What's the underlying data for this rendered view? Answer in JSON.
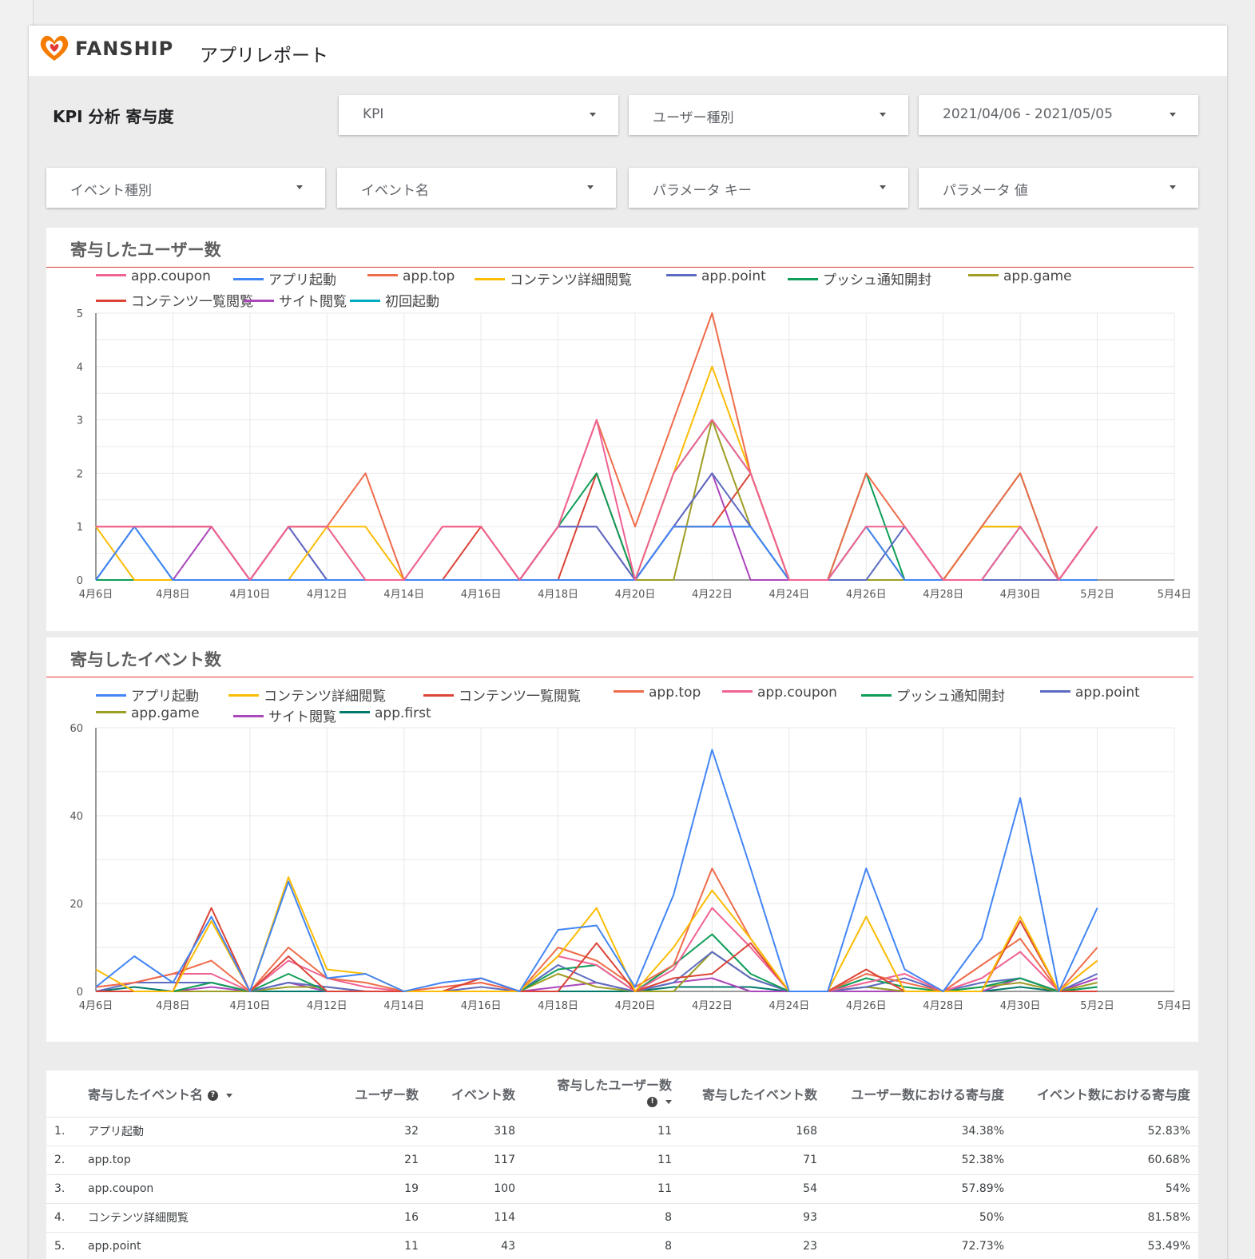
{
  "header": {
    "brand": "FANSHIP",
    "title": "アプリレポート"
  },
  "page_title": "KPI 分析 寄与度",
  "filters": [
    {
      "label": "KPI"
    },
    {
      "label": "ユーザー種別"
    },
    {
      "label": "2021/04/06 - 2021/05/05"
    },
    {
      "label": "イベント種別"
    },
    {
      "label": "イベント名"
    },
    {
      "label": "パラメータ キー"
    },
    {
      "label": "パラメータ 値"
    }
  ],
  "colors": {
    "accent_rule": "#e53935",
    "logo_orange": "#f57c00",
    "logo_red": "#e53935"
  },
  "chart_data": [
    {
      "type": "line",
      "title": "寄与したユーザー数",
      "x": [
        "4月6日",
        "4月7日",
        "4月8日",
        "4月9日",
        "4月10日",
        "4月11日",
        "4月12日",
        "4月13日",
        "4月14日",
        "4月15日",
        "4月16日",
        "4月17日",
        "4月18日",
        "4月19日",
        "4月20日",
        "4月21日",
        "4月22日",
        "4月23日",
        "4月24日",
        "4月25日",
        "4月26日",
        "4月27日",
        "4月28日",
        "4月29日",
        "4月30日",
        "5月1日",
        "5月2日"
      ],
      "x_ticks": [
        "4月6日",
        "4月8日",
        "4月10日",
        "4月12日",
        "4月14日",
        "4月16日",
        "4月18日",
        "4月20日",
        "4月22日",
        "4月24日",
        "4月26日",
        "4月28日",
        "4月30日",
        "5月2日",
        "5月4日"
      ],
      "ylim": [
        0,
        5
      ],
      "y_ticks": [
        0,
        1,
        2,
        3,
        4,
        5
      ],
      "grid": true,
      "legend_position": "top",
      "series": [
        {
          "name": "app.coupon",
          "color": "#f06292",
          "values": [
            1,
            1,
            1,
            1,
            0,
            1,
            1,
            0,
            0,
            1,
            1,
            0,
            1,
            3,
            0,
            2,
            3,
            2,
            0,
            0,
            1,
            1,
            0,
            0,
            1,
            0,
            1
          ]
        },
        {
          "name": "アプリ起動",
          "color": "#4285f4",
          "values": [
            0,
            1,
            0,
            0,
            0,
            0,
            0,
            0,
            0,
            0,
            0,
            0,
            0,
            0,
            0,
            1,
            1,
            1,
            0,
            0,
            1,
            0,
            0,
            0,
            1,
            0,
            0
          ]
        },
        {
          "name": "app.top",
          "color": "#ef6c4a",
          "values": [
            1,
            1,
            1,
            1,
            0,
            1,
            1,
            2,
            0,
            1,
            1,
            0,
            1,
            3,
            1,
            3,
            5,
            2,
            0,
            0,
            2,
            1,
            0,
            1,
            2,
            0,
            1
          ]
        },
        {
          "name": "コンテンツ詳細閲覧",
          "color": "#fbbc04",
          "values": [
            1,
            0,
            0,
            0,
            0,
            0,
            1,
            1,
            0,
            0,
            0,
            0,
            0,
            0,
            0,
            2,
            4,
            2,
            0,
            0,
            1,
            0,
            0,
            1,
            1,
            0,
            0
          ]
        },
        {
          "name": "app.point",
          "color": "#5c6bc0",
          "values": [
            0,
            1,
            1,
            1,
            0,
            1,
            0,
            0,
            0,
            0,
            0,
            0,
            1,
            1,
            0,
            1,
            2,
            1,
            0,
            0,
            0,
            1,
            0,
            0,
            0,
            0,
            1
          ]
        },
        {
          "name": "プッシュ通知開封",
          "color": "#0f9d58",
          "values": [
            0,
            0,
            0,
            0,
            0,
            0,
            0,
            0,
            0,
            0,
            0,
            0,
            1,
            2,
            0,
            2,
            3,
            2,
            0,
            0,
            2,
            0,
            0,
            1,
            2,
            0,
            0
          ]
        },
        {
          "name": "app.game",
          "color": "#9e9d24",
          "values": [
            0,
            0,
            0,
            0,
            0,
            1,
            1,
            0,
            0,
            0,
            0,
            0,
            0,
            0,
            0,
            0,
            3,
            1,
            0,
            0,
            0,
            0,
            0,
            1,
            1,
            0,
            0
          ]
        },
        {
          "name": "コンテンツ一覧閲覧",
          "color": "#db4437",
          "values": [
            0,
            0,
            0,
            0,
            0,
            0,
            0,
            0,
            0,
            0,
            1,
            0,
            0,
            2,
            0,
            1,
            1,
            2,
            0,
            0,
            0,
            0,
            0,
            0,
            0,
            0,
            0
          ]
        },
        {
          "name": "サイト閲覧",
          "color": "#ab47bc",
          "values": [
            0,
            0,
            0,
            1,
            0,
            1,
            0,
            0,
            0,
            0,
            0,
            0,
            1,
            1,
            0,
            1,
            2,
            0,
            0,
            0,
            0,
            0,
            0,
            0,
            0,
            0,
            1
          ]
        },
        {
          "name": "初回起動",
          "color": "#00acc1",
          "values": [
            0,
            1,
            0,
            0,
            0,
            0,
            0,
            0,
            0,
            0,
            0,
            0,
            0,
            0,
            0,
            1,
            1,
            1,
            0,
            0,
            1,
            0,
            0,
            0,
            1,
            0,
            0
          ]
        }
      ]
    },
    {
      "type": "line",
      "title": "寄与したイベント数",
      "x": [
        "4月6日",
        "4月7日",
        "4月8日",
        "4月9日",
        "4月10日",
        "4月11日",
        "4月12日",
        "4月13日",
        "4月14日",
        "4月15日",
        "4月16日",
        "4月17日",
        "4月18日",
        "4月19日",
        "4月20日",
        "4月21日",
        "4月22日",
        "4月23日",
        "4月24日",
        "4月25日",
        "4月26日",
        "4月27日",
        "4月28日",
        "4月29日",
        "4月30日",
        "5月1日",
        "5月2日"
      ],
      "x_ticks": [
        "4月6日",
        "4月8日",
        "4月10日",
        "4月12日",
        "4月14日",
        "4月16日",
        "4月18日",
        "4月20日",
        "4月22日",
        "4月24日",
        "4月26日",
        "4月28日",
        "4月30日",
        "5月2日",
        "5月4日"
      ],
      "ylim": [
        0,
        60
      ],
      "y_ticks": [
        0,
        20,
        40,
        60
      ],
      "grid": true,
      "legend_position": "top",
      "series": [
        {
          "name": "アプリ起動",
          "color": "#4285f4",
          "values": [
            1,
            8,
            2,
            17,
            0,
            25,
            3,
            4,
            0,
            2,
            3,
            0,
            14,
            15,
            1,
            22,
            55,
            28,
            0,
            0,
            28,
            5,
            0,
            12,
            44,
            0,
            19
          ]
        },
        {
          "name": "コンテンツ詳細閲覧",
          "color": "#fbbc04",
          "values": [
            5,
            0,
            0,
            16,
            0,
            26,
            5,
            4,
            0,
            0,
            0,
            0,
            8,
            19,
            0,
            10,
            23,
            12,
            0,
            0,
            17,
            0,
            0,
            0,
            17,
            0,
            7
          ]
        },
        {
          "name": "コンテンツ一覧閲覧",
          "color": "#db4437",
          "values": [
            0,
            0,
            0,
            19,
            0,
            8,
            0,
            0,
            0,
            0,
            3,
            0,
            0,
            11,
            0,
            3,
            4,
            11,
            0,
            0,
            5,
            0,
            0,
            0,
            16,
            0,
            0
          ]
        },
        {
          "name": "app.top",
          "color": "#ef6c4a",
          "values": [
            1,
            2,
            4,
            7,
            0,
            10,
            3,
            2,
            0,
            1,
            2,
            0,
            10,
            7,
            1,
            6,
            28,
            12,
            0,
            0,
            4,
            2,
            0,
            6,
            12,
            0,
            10
          ]
        },
        {
          "name": "app.coupon",
          "color": "#f06292",
          "values": [
            1,
            2,
            4,
            4,
            0,
            7,
            3,
            1,
            0,
            1,
            2,
            0,
            8,
            6,
            0,
            5,
            19,
            10,
            0,
            0,
            2,
            4,
            0,
            3,
            9,
            0,
            7
          ]
        },
        {
          "name": "プッシュ通知開封",
          "color": "#0f9d58",
          "values": [
            0,
            0,
            0,
            2,
            0,
            4,
            0,
            0,
            0,
            0,
            0,
            0,
            5,
            6,
            0,
            6,
            13,
            4,
            0,
            0,
            3,
            1,
            0,
            1,
            3,
            0,
            1
          ]
        },
        {
          "name": "app.point",
          "color": "#5c6bc0",
          "values": [
            0,
            2,
            2,
            2,
            0,
            2,
            1,
            0,
            0,
            0,
            1,
            0,
            6,
            2,
            0,
            2,
            9,
            3,
            0,
            0,
            1,
            3,
            0,
            2,
            3,
            0,
            4
          ]
        },
        {
          "name": "app.game",
          "color": "#9e9d24",
          "values": [
            0,
            0,
            0,
            0,
            0,
            1,
            1,
            0,
            0,
            0,
            0,
            0,
            4,
            1,
            0,
            0,
            9,
            3,
            0,
            0,
            1,
            0,
            0,
            1,
            2,
            0,
            2
          ]
        },
        {
          "name": "サイト閲覧",
          "color": "#ab47bc",
          "values": [
            0,
            0,
            0,
            1,
            0,
            2,
            0,
            0,
            0,
            0,
            0,
            0,
            1,
            2,
            0,
            2,
            3,
            0,
            0,
            0,
            0,
            0,
            0,
            0,
            3,
            0,
            3
          ]
        },
        {
          "name": "app.first",
          "color": "#00796b",
          "values": [
            0,
            1,
            0,
            0,
            0,
            0,
            0,
            0,
            0,
            0,
            0,
            0,
            0,
            0,
            0,
            1,
            1,
            1,
            0,
            0,
            1,
            0,
            0,
            0,
            1,
            0,
            1
          ]
        }
      ]
    }
  ],
  "table": {
    "columns": {
      "event_name": "寄与したイベント名",
      "users": "ユーザー数",
      "events": "イベント数",
      "contrib_users": "寄与したユーザー数",
      "contrib_events": "寄与したイベント数",
      "user_ratio": "ユーザー数における寄与度",
      "event_ratio": "イベント数における寄与度"
    },
    "rows": [
      {
        "idx": "1.",
        "name": "アプリ起動",
        "users": "32",
        "events": "318",
        "cu": "11",
        "ce": "168",
        "ur": "34.38%",
        "er": "52.83%"
      },
      {
        "idx": "2.",
        "name": "app.top",
        "users": "21",
        "events": "117",
        "cu": "11",
        "ce": "71",
        "ur": "52.38%",
        "er": "60.68%"
      },
      {
        "idx": "3.",
        "name": "app.coupon",
        "users": "19",
        "events": "100",
        "cu": "11",
        "ce": "54",
        "ur": "57.89%",
        "er": "54%"
      },
      {
        "idx": "4.",
        "name": "コンテンツ詳細閲覧",
        "users": "16",
        "events": "114",
        "cu": "8",
        "ce": "93",
        "ur": "50%",
        "er": "81.58%"
      },
      {
        "idx": "5.",
        "name": "app.point",
        "users": "11",
        "events": "43",
        "cu": "8",
        "ce": "23",
        "ur": "72.73%",
        "er": "53.49%"
      }
    ]
  }
}
